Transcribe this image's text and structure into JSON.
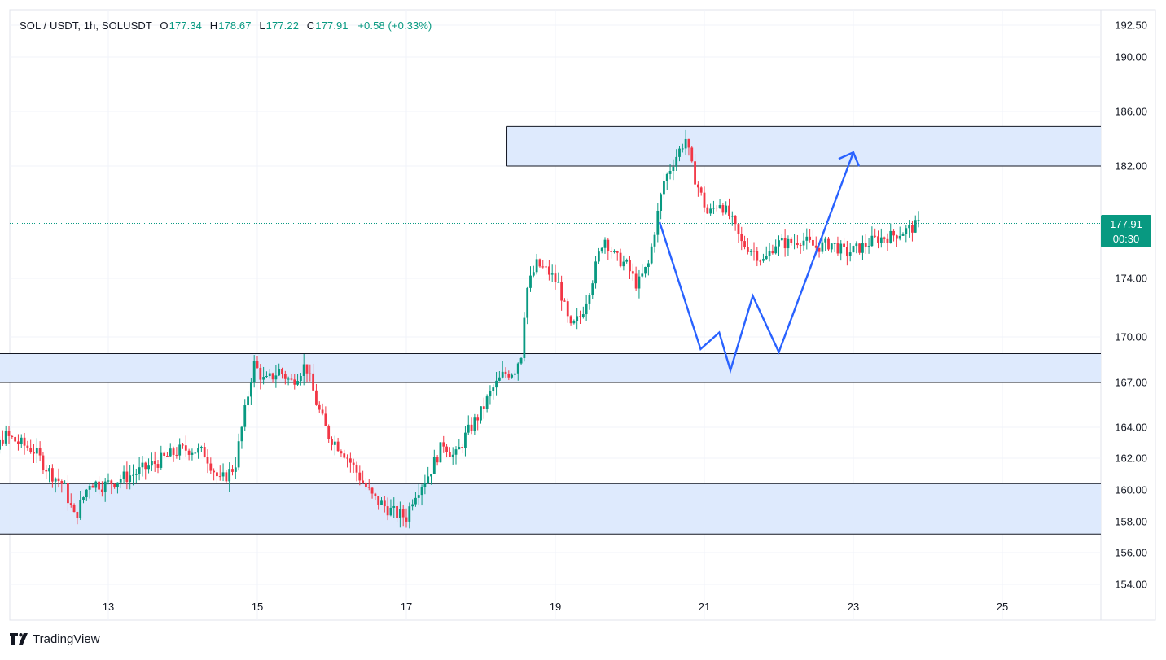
{
  "legend": {
    "symbol": "SOL / USDT, 1h, SOLUSDT",
    "o_label": "O",
    "o_value": "177.34",
    "h_label": "H",
    "h_value": "178.67",
    "l_label": "L",
    "l_value": "177.22",
    "c_label": "C",
    "c_value": "177.91",
    "change": "+0.58 (+0.33%)"
  },
  "price_badge": {
    "price": "177.91",
    "countdown": "00:30"
  },
  "brand": {
    "name": "TradingView",
    "icon": "tradingview-logo-icon"
  },
  "colors": {
    "up": "#089981",
    "down": "#F23645",
    "zone_fill": "#DCE9FD",
    "projection": "#2962FF"
  },
  "chart_data": {
    "type": "candlestick",
    "timeframe": "1h",
    "x_ticks": [
      "13",
      "15",
      "17",
      "19",
      "21",
      "23",
      "25"
    ],
    "y_ticks": [
      "154.00",
      "156.00",
      "158.00",
      "160.00",
      "162.00",
      "164.00",
      "167.00",
      "170.00",
      "174.00",
      "177.91",
      "182.00",
      "186.00",
      "190.00",
      "192.50"
    ],
    "y_tick_values": [
      154,
      156,
      158,
      160,
      162,
      164,
      167,
      170,
      174,
      182,
      186,
      190,
      192.5
    ],
    "last_price": 177.91,
    "zones": [
      {
        "from_day": 18.35,
        "low": 182.0,
        "high": 184.9
      },
      {
        "from_day": 11.0,
        "low": 167.0,
        "high": 168.9
      },
      {
        "from_day": 11.0,
        "low": 157.2,
        "high": 160.4
      }
    ],
    "projection_path": [
      {
        "day": 20.4,
        "price": 178.0
      },
      {
        "day": 20.95,
        "price": 169.2
      },
      {
        "day": 21.2,
        "price": 170.3
      },
      {
        "day": 21.35,
        "price": 167.8
      },
      {
        "day": 21.65,
        "price": 172.8
      },
      {
        "day": 22.0,
        "price": 169.0
      },
      {
        "day": 23.0,
        "price": 183.0
      }
    ],
    "arrow_tip": {
      "day": 23.0,
      "price": 183.0
    },
    "price_path": [
      [
        11.0,
        167.0
      ],
      [
        11.15,
        163.5
      ],
      [
        11.3,
        164.8
      ],
      [
        11.45,
        162.0
      ],
      [
        11.6,
        163.5
      ],
      [
        11.8,
        163.0
      ],
      [
        12.0,
        162.5
      ],
      [
        12.2,
        161.2
      ],
      [
        12.4,
        160.3
      ],
      [
        12.55,
        158.2
      ],
      [
        12.75,
        160.5
      ],
      [
        12.95,
        160.3
      ],
      [
        13.15,
        160.7
      ],
      [
        13.35,
        161.0
      ],
      [
        13.55,
        161.5
      ],
      [
        13.75,
        162.0
      ],
      [
        13.95,
        162.5
      ],
      [
        14.1,
        162.6
      ],
      [
        14.3,
        162.3
      ],
      [
        14.5,
        160.5
      ],
      [
        14.7,
        161.5
      ],
      [
        14.85,
        165.5
      ],
      [
        14.95,
        168.3
      ],
      [
        15.1,
        167.0
      ],
      [
        15.3,
        167.8
      ],
      [
        15.45,
        167.0
      ],
      [
        15.65,
        168.2
      ],
      [
        15.8,
        165.5
      ],
      [
        15.95,
        163.5
      ],
      [
        16.15,
        162.5
      ],
      [
        16.35,
        161.0
      ],
      [
        16.55,
        159.5
      ],
      [
        16.7,
        159.0
      ],
      [
        16.85,
        158.5
      ],
      [
        17.0,
        158.3
      ],
      [
        17.1,
        159.7
      ],
      [
        17.3,
        161.0
      ],
      [
        17.5,
        163.0
      ],
      [
        17.65,
        162.0
      ],
      [
        17.8,
        163.5
      ],
      [
        18.0,
        165.0
      ],
      [
        18.15,
        166.5
      ],
      [
        18.3,
        167.5
      ],
      [
        18.45,
        167.8
      ],
      [
        18.55,
        169.0
      ],
      [
        18.6,
        173.0
      ],
      [
        18.75,
        175.0
      ],
      [
        18.9,
        174.5
      ],
      [
        19.05,
        173.5
      ],
      [
        19.2,
        170.5
      ],
      [
        19.35,
        171.5
      ],
      [
        19.5,
        174.0
      ],
      [
        19.65,
        177.0
      ],
      [
        19.8,
        175.5
      ],
      [
        19.95,
        175.0
      ],
      [
        20.1,
        173.5
      ],
      [
        20.25,
        175.0
      ],
      [
        20.45,
        180.8
      ],
      [
        20.6,
        182.5
      ],
      [
        20.75,
        184.0
      ],
      [
        20.85,
        181.5
      ],
      [
        20.95,
        180.0
      ],
      [
        21.05,
        178.5
      ],
      [
        21.2,
        179.5
      ],
      [
        21.35,
        178.3
      ],
      [
        21.5,
        176.5
      ],
      [
        21.65,
        176.0
      ],
      [
        21.8,
        175.2
      ],
      [
        21.95,
        176.5
      ],
      [
        22.15,
        176.5
      ],
      [
        22.3,
        176.8
      ],
      [
        22.5,
        176.2
      ],
      [
        22.7,
        176.5
      ],
      [
        22.9,
        175.8
      ],
      [
        23.1,
        176.2
      ],
      [
        23.3,
        176.8
      ],
      [
        23.5,
        177.0
      ],
      [
        23.75,
        177.5
      ],
      [
        23.9,
        177.91
      ]
    ]
  }
}
